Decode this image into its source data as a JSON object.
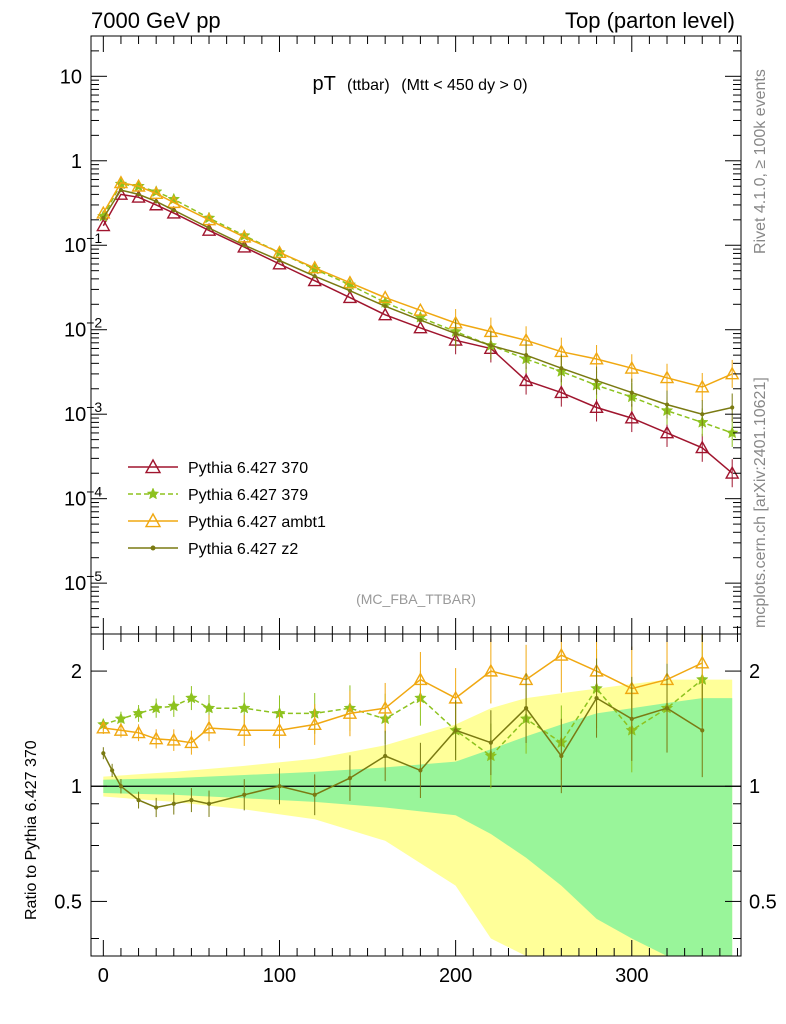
{
  "header": {
    "left": "7000 GeV pp",
    "right": "Top (parton level)"
  },
  "side": {
    "rivet": "Rivet 4.1.0, ≥ 100k events",
    "mcplots": "mcplots.cern.ch [arXiv:2401.10621]"
  },
  "colors": {
    "p370": "#a0152e",
    "p379": "#8dc21f",
    "ambt1": "#f0a811",
    "z2": "#7a7a12",
    "band_inner": "#99f59a",
    "band_outer": "#ffff99"
  },
  "chart_data": [
    {
      "id": "main",
      "type": "line",
      "title_main": "pT",
      "title_sub": "(ttbar)",
      "title_cut": "(Mtt < 450 dy > 0)",
      "watermark": "(MC_FBA_TTBAR)",
      "yscale": "log",
      "xlim": [
        -7,
        362
      ],
      "ylim": [
        2.5e-06,
        30
      ],
      "yticks": [
        {
          "v": 10,
          "base": "10",
          "exp": ""
        },
        {
          "v": 1,
          "base": "1",
          "exp": ""
        },
        {
          "v": 0.1,
          "base": "10",
          "exp": "−1"
        },
        {
          "v": 0.01,
          "base": "10",
          "exp": "−2"
        },
        {
          "v": 0.001,
          "base": "10",
          "exp": "−3"
        },
        {
          "v": 0.0001,
          "base": "10",
          "exp": "−4"
        },
        {
          "v": 1e-05,
          "base": "10",
          "exp": "−5"
        }
      ],
      "legend": [
        {
          "key": "p370",
          "label": "Pythia 6.427 370",
          "marker": "triangle",
          "dash": false
        },
        {
          "key": "p379",
          "label": "Pythia 6.427 379",
          "marker": "star",
          "dash": true
        },
        {
          "key": "ambt1",
          "label": "Pythia 6.427 ambt1",
          "marker": "triangle",
          "dash": false
        },
        {
          "key": "z2",
          "label": "Pythia 6.427 z2",
          "marker": "dot",
          "dash": false
        }
      ],
      "series": [
        {
          "key": "p370",
          "x": [
            0,
            10,
            20,
            30,
            40,
            60,
            80,
            100,
            120,
            140,
            160,
            180,
            200,
            220,
            240,
            260,
            280,
            300,
            320,
            340,
            357
          ],
          "y": [
            0.17,
            0.4,
            0.37,
            0.3,
            0.24,
            0.15,
            0.095,
            0.06,
            0.038,
            0.024,
            0.015,
            0.0105,
            0.0075,
            0.006,
            0.0025,
            0.0018,
            0.0012,
            0.0009,
            0.0006,
            0.0004,
            0.0002
          ]
        },
        {
          "key": "p379",
          "x": [
            0,
            10,
            20,
            30,
            40,
            60,
            80,
            100,
            120,
            140,
            160,
            180,
            200,
            220,
            240,
            260,
            280,
            300,
            320,
            340,
            357
          ],
          "y": [
            0.22,
            0.53,
            0.5,
            0.43,
            0.35,
            0.21,
            0.13,
            0.082,
            0.052,
            0.034,
            0.021,
            0.014,
            0.0095,
            0.0065,
            0.0045,
            0.0032,
            0.0022,
            0.0016,
            0.0011,
            0.0008,
            0.0006
          ]
        },
        {
          "key": "ambt1",
          "x": [
            0,
            10,
            20,
            30,
            40,
            60,
            80,
            100,
            120,
            140,
            160,
            180,
            200,
            220,
            240,
            260,
            280,
            300,
            320,
            340,
            357
          ],
          "y": [
            0.24,
            0.55,
            0.5,
            0.41,
            0.32,
            0.2,
            0.125,
            0.082,
            0.054,
            0.036,
            0.024,
            0.017,
            0.012,
            0.0095,
            0.0075,
            0.0055,
            0.0045,
            0.0035,
            0.0027,
            0.0021,
            0.003
          ]
        },
        {
          "key": "z2",
          "x": [
            0,
            10,
            20,
            30,
            40,
            60,
            80,
            100,
            120,
            140,
            160,
            180,
            200,
            220,
            240,
            260,
            280,
            300,
            320,
            340,
            357
          ],
          "y": [
            0.21,
            0.45,
            0.4,
            0.33,
            0.26,
            0.16,
            0.1,
            0.066,
            0.043,
            0.029,
            0.019,
            0.013,
            0.009,
            0.0065,
            0.005,
            0.0035,
            0.0025,
            0.0018,
            0.0013,
            0.001,
            0.0012
          ]
        }
      ]
    },
    {
      "id": "ratio",
      "type": "line",
      "ylabel": "Ratio to Pythia 6.427 370",
      "yscale": "log",
      "xlim": [
        -7,
        362
      ],
      "ylim": [
        0.36,
        2.5
      ],
      "yticks": [
        {
          "v": 0.5,
          "label": "0.5"
        },
        {
          "v": 1,
          "label": "1"
        },
        {
          "v": 2,
          "label": "2"
        }
      ],
      "xticks": [
        0,
        100,
        200,
        300
      ],
      "band_x": [
        0,
        40,
        80,
        120,
        160,
        200,
        220,
        240,
        260,
        280,
        300,
        320,
        340,
        357
      ],
      "band_inner": [
        0.04,
        0.05,
        0.07,
        0.09,
        0.12,
        0.16,
        0.25,
        0.35,
        0.45,
        0.55,
        0.6,
        0.65,
        0.7,
        0.7
      ],
      "band_outer": [
        0.06,
        0.09,
        0.13,
        0.18,
        0.28,
        0.45,
        0.6,
        0.7,
        0.75,
        0.8,
        0.85,
        0.9,
        0.9,
        0.9
      ],
      "series": [
        {
          "key": "p379",
          "x": [
            0,
            10,
            20,
            30,
            40,
            50,
            60,
            80,
            100,
            120,
            140,
            160,
            180,
            200,
            220,
            240,
            260,
            280,
            300,
            320,
            340
          ],
          "y": [
            1.45,
            1.5,
            1.55,
            1.6,
            1.62,
            1.7,
            1.6,
            1.6,
            1.55,
            1.55,
            1.6,
            1.5,
            1.7,
            1.4,
            1.2,
            1.5,
            1.3,
            1.8,
            1.4,
            1.6,
            1.9
          ]
        },
        {
          "key": "ambt1",
          "x": [
            0,
            10,
            20,
            30,
            40,
            50,
            60,
            80,
            100,
            120,
            140,
            160,
            180,
            200,
            220,
            240,
            260,
            280,
            300,
            320,
            340
          ],
          "y": [
            1.42,
            1.4,
            1.38,
            1.33,
            1.32,
            1.3,
            1.42,
            1.4,
            1.4,
            1.45,
            1.55,
            1.6,
            1.9,
            1.7,
            2.0,
            1.9,
            2.2,
            2.0,
            1.8,
            1.9,
            2.1
          ]
        },
        {
          "key": "z2",
          "x": [
            0,
            5,
            10,
            20,
            30,
            40,
            50,
            60,
            80,
            100,
            120,
            140,
            160,
            180,
            200,
            220,
            240,
            260,
            280,
            300,
            320,
            340
          ],
          "y": [
            1.22,
            1.1,
            1.0,
            0.92,
            0.88,
            0.9,
            0.92,
            0.9,
            0.95,
            1.0,
            0.95,
            1.05,
            1.2,
            1.1,
            1.4,
            1.3,
            1.6,
            1.2,
            1.7,
            1.5,
            1.6,
            1.4
          ]
        }
      ]
    }
  ]
}
